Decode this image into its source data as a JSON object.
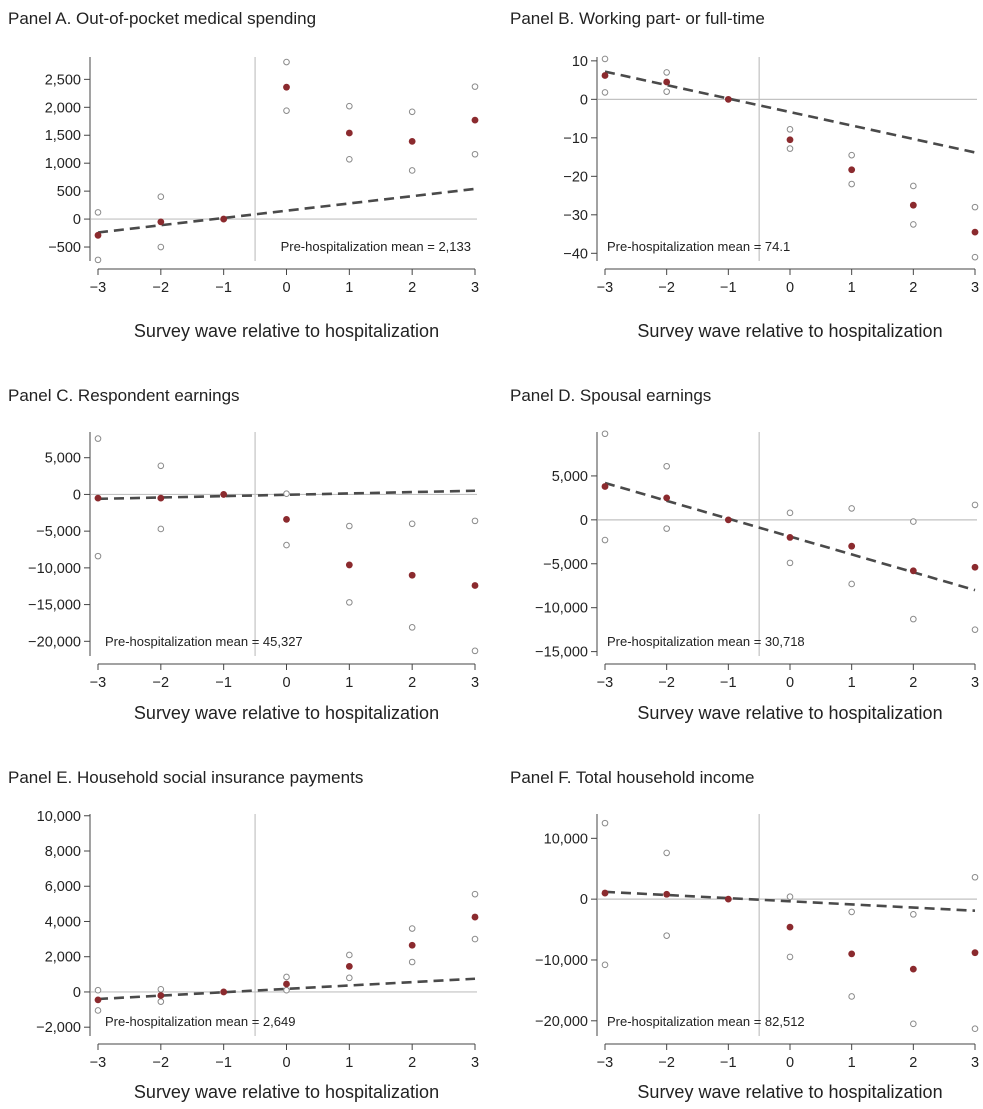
{
  "chart_data": [
    {
      "type": "scatter",
      "panel": "A",
      "title": "Panel A. Out-of-pocket medical spending",
      "xlabel": "Survey wave relative to hospitalization",
      "ylabel": "",
      "x": [
        -3,
        -2,
        -1,
        0,
        1,
        2,
        3
      ],
      "xticks": [
        "−3",
        "−2",
        "−1",
        "0",
        "1",
        "2",
        "3"
      ],
      "ylim": [
        -750,
        2900
      ],
      "yticks": [
        -500,
        0,
        500,
        1000,
        1500,
        2000,
        2500
      ],
      "ytick_labels": [
        "−500",
        "0",
        "500",
        "1,000",
        "1,500",
        "2,000",
        "2,500"
      ],
      "estimate": [
        -290,
        -50,
        0,
        2360,
        1540,
        1390,
        1770
      ],
      "ci_upper": [
        120,
        400,
        0,
        2810,
        2020,
        1920,
        2370
      ],
      "ci_lower": [
        -730,
        -500,
        0,
        1940,
        1070,
        870,
        1160
      ],
      "trend_line": {
        "start": [
          -3,
          -240
        ],
        "end": [
          3,
          540
        ]
      },
      "event_line_x": -0.5,
      "annotation": "Pre-hospitalization mean = 2,133"
    },
    {
      "type": "scatter",
      "panel": "B",
      "title": "Panel B. Working part- or full-time",
      "xlabel": "Survey wave relative to hospitalization",
      "ylabel": "",
      "x": [
        -3,
        -2,
        -1,
        0,
        1,
        2,
        3
      ],
      "xticks": [
        "−3",
        "−2",
        "−1",
        "0",
        "1",
        "2",
        "3"
      ],
      "ylim": [
        -42,
        11
      ],
      "yticks": [
        -40,
        -30,
        -20,
        -10,
        0,
        10
      ],
      "ytick_labels": [
        "−40",
        "−30",
        "−20",
        "−10",
        "0",
        "10"
      ],
      "estimate": [
        6.2,
        4.5,
        0,
        -10.5,
        -18.3,
        -27.5,
        -34.5
      ],
      "ci_upper": [
        10.5,
        7.0,
        0,
        -7.8,
        -14.5,
        -22.5,
        -28.0
      ],
      "ci_lower": [
        1.8,
        2.0,
        0,
        -12.8,
        -22.0,
        -32.5,
        -41.0
      ],
      "trend_line": {
        "start": [
          -3,
          7.2
        ],
        "end": [
          3,
          -13.8
        ]
      },
      "event_line_x": -0.5,
      "annotation": "Pre-hospitalization mean = 74.1"
    },
    {
      "type": "scatter",
      "panel": "C",
      "title": "Panel C. Respondent earnings",
      "xlabel": "Survey wave relative to hospitalization",
      "ylabel": "",
      "x": [
        -3,
        -2,
        -1,
        0,
        1,
        2,
        3
      ],
      "xticks": [
        "−3",
        "−2",
        "−1",
        "0",
        "1",
        "2",
        "3"
      ],
      "ylim": [
        -22000,
        8500
      ],
      "yticks": [
        -20000,
        -15000,
        -10000,
        -5000,
        0,
        5000
      ],
      "ytick_labels": [
        "−20,000",
        "−15,000",
        "−10,000",
        "−5,000",
        "0",
        "5,000"
      ],
      "estimate": [
        -500,
        -500,
        0,
        -3400,
        -9600,
        -11000,
        -12400
      ],
      "ci_upper": [
        7600,
        3900,
        0,
        100,
        -4300,
        -4000,
        -3600
      ],
      "ci_lower": [
        -8400,
        -4700,
        0,
        -6900,
        -14700,
        -18100,
        -21300
      ],
      "trend_line": {
        "start": [
          -3,
          -600
        ],
        "end": [
          3,
          500
        ]
      },
      "event_line_x": -0.5,
      "annotation": "Pre-hospitalization mean = 45,327"
    },
    {
      "type": "scatter",
      "panel": "D",
      "title": "Panel D. Spousal earnings",
      "xlabel": "Survey wave relative to hospitalization",
      "ylabel": "",
      "x": [
        -3,
        -2,
        -1,
        0,
        1,
        2,
        3
      ],
      "xticks": [
        "−3",
        "−2",
        "−1",
        "0",
        "1",
        "2",
        "3"
      ],
      "ylim": [
        -15500,
        10000
      ],
      "yticks": [
        -15000,
        -10000,
        -5000,
        0,
        5000
      ],
      "ytick_labels": [
        "−15,000",
        "−10,000",
        "−5,000",
        "0",
        "5,000"
      ],
      "estimate": [
        3800,
        2500,
        0,
        -2000,
        -3000,
        -5800,
        -5400
      ],
      "ci_upper": [
        9800,
        6100,
        0,
        800,
        1300,
        -200,
        1700
      ],
      "ci_lower": [
        -2300,
        -1000,
        0,
        -4900,
        -7300,
        -11300,
        -12500
      ],
      "trend_line": {
        "start": [
          -3,
          4200
        ],
        "end": [
          3,
          -8000
        ]
      },
      "event_line_x": -0.5,
      "annotation": "Pre-hospitalization mean = 30,718"
    },
    {
      "type": "scatter",
      "panel": "E",
      "title": "Panel E. Household social insurance payments",
      "xlabel": "Survey wave relative to hospitalization",
      "ylabel": "",
      "x": [
        -3,
        -2,
        -1,
        0,
        1,
        2,
        3
      ],
      "xticks": [
        "−3",
        "−2",
        "−1",
        "0",
        "1",
        "2",
        "3"
      ],
      "ylim": [
        -2500,
        10100
      ],
      "yticks": [
        -2000,
        0,
        2000,
        4000,
        6000,
        8000,
        10000
      ],
      "ytick_labels": [
        "−2,000",
        "0",
        "2,000",
        "4,000",
        "6,000",
        "8,000",
        "10,000"
      ],
      "estimate": [
        -450,
        -200,
        0,
        450,
        1450,
        2650,
        4250
      ],
      "ci_upper": [
        100,
        150,
        0,
        850,
        2100,
        3600,
        5550
      ],
      "ci_lower": [
        -1050,
        -550,
        0,
        100,
        800,
        1700,
        3000
      ],
      "trend_line": {
        "start": [
          -3,
          -400
        ],
        "end": [
          3,
          750
        ]
      },
      "event_line_x": -0.5,
      "annotation": "Pre-hospitalization mean = 2,649"
    },
    {
      "type": "scatter",
      "panel": "F",
      "title": "Panel F. Total household income",
      "xlabel": "Survey wave relative to hospitalization",
      "ylabel": "",
      "x": [
        -3,
        -2,
        -1,
        0,
        1,
        2,
        3
      ],
      "xticks": [
        "−3",
        "−2",
        "−1",
        "0",
        "1",
        "2",
        "3"
      ],
      "ylim": [
        -22500,
        14000
      ],
      "yticks": [
        -20000,
        -10000,
        0,
        10000
      ],
      "ytick_labels": [
        "−20,000",
        "−10,000",
        "0",
        "10,000"
      ],
      "estimate": [
        1000,
        800,
        0,
        -4600,
        -9000,
        -11500,
        -8800
      ],
      "ci_upper": [
        12500,
        7600,
        0,
        400,
        -2100,
        -2500,
        3600
      ],
      "ci_lower": [
        -10800,
        -6000,
        0,
        -9500,
        -16000,
        -20500,
        -21300
      ],
      "trend_line": {
        "start": [
          -3,
          1200
        ],
        "end": [
          3,
          -1900
        ]
      },
      "event_line_x": -0.5,
      "annotation": "Pre-hospitalization mean = 82,512"
    }
  ],
  "colors": {
    "estimate": "#8b2a2e",
    "ci_marker": "#8a8a8a",
    "trend_line": "#4a4a4a",
    "reference_line": "#c2c2c2",
    "axis": "#444444"
  }
}
